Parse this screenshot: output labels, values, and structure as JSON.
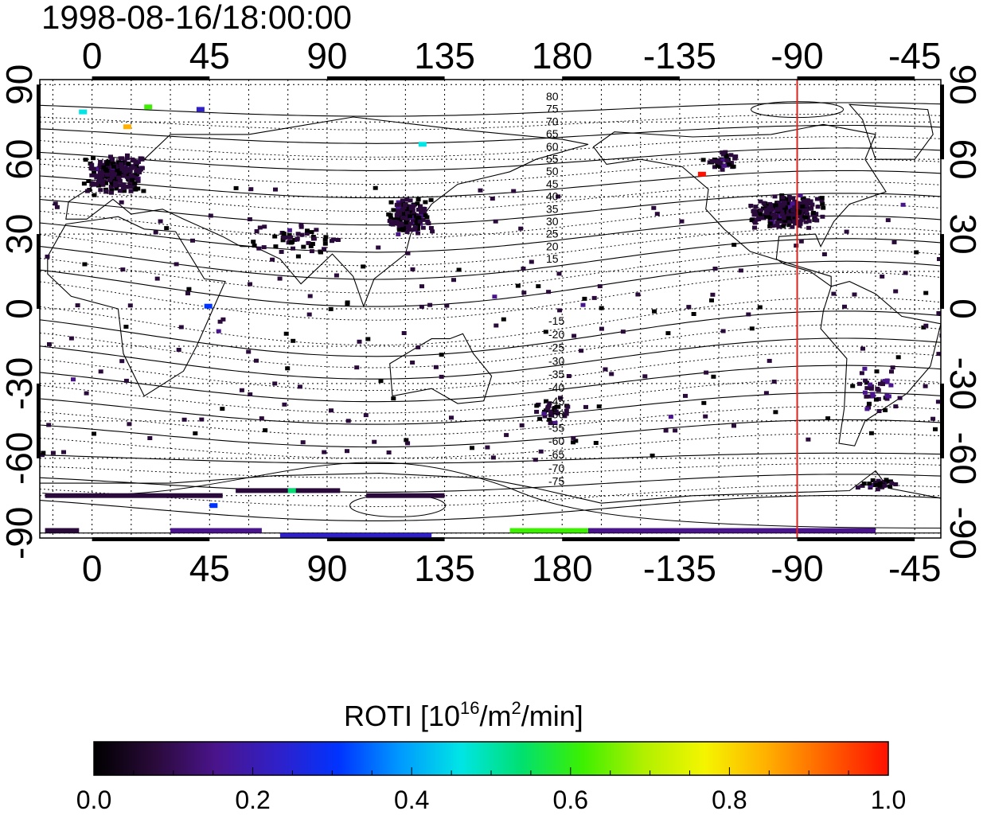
{
  "timestamp": "1998-08-16/18:00:00",
  "map": {
    "lon_ticks": [
      "0",
      "45",
      "90",
      "135",
      "180",
      "-135",
      "-90",
      "-45"
    ],
    "lon_values": [
      0,
      45,
      90,
      135,
      180,
      225,
      270,
      315
    ],
    "lat_ticks": [
      "90",
      "60",
      "30",
      "0",
      "-30",
      "-60",
      "-90"
    ],
    "lat_ticks_right": [
      "90",
      "60",
      "30",
      "0",
      "-30",
      "-60",
      "-90"
    ],
    "lat_values": [
      90,
      60,
      30,
      0,
      -30,
      -60,
      -90
    ],
    "lon_range": [
      -20,
      325
    ],
    "lat_range": [
      -92,
      92
    ],
    "grid": true,
    "meridian_marker_lon": "-90",
    "meridian_marker_color": "#e0201a",
    "north_mlat_labels": [
      "80",
      "75",
      "70",
      "65",
      "60",
      "55",
      "50",
      "45",
      "40",
      "35",
      "30",
      "25",
      "20",
      "15"
    ],
    "south_mlat_labels": [
      "-15",
      "-20",
      "-25",
      "-30",
      "-35",
      "-40",
      "-45",
      "-50",
      "-55",
      "-60",
      "-65",
      "-70",
      "-75"
    ]
  },
  "colorbar": {
    "title_prefix": "ROTI  [10",
    "title_exp1": "16",
    "title_mid": "/m",
    "title_exp2": "2",
    "title_suffix": "/min]",
    "ticks": [
      "0.0",
      "0.2",
      "0.4",
      "0.6",
      "0.8",
      "1.0"
    ],
    "range": [
      0.0,
      1.0
    ],
    "colormap": [
      "#000000",
      "#2a0a3a",
      "#4a148c",
      "#3020c8",
      "#0033ff",
      "#0099ff",
      "#00e5e5",
      "#00e070",
      "#3cf000",
      "#b0f000",
      "#f5f500",
      "#ffb000",
      "#ff6000",
      "#ff1000"
    ]
  }
}
